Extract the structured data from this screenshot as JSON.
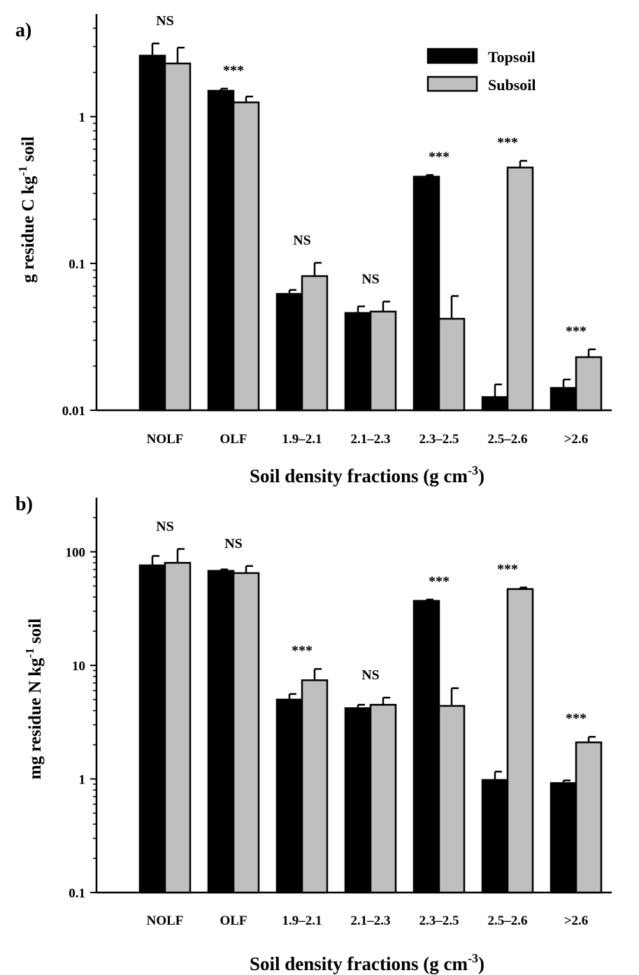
{
  "chart_data": [
    {
      "type": "bar",
      "panel_label": "a)",
      "categories": [
        "NOLF",
        "OLF",
        "1.9–2.1",
        "2.1–2.3",
        "2.3–2.5",
        "2.5–2.6",
        ">2.6"
      ],
      "series": [
        {
          "name": "Topsoil",
          "color": "#000000",
          "values": [
            2.6,
            1.5,
            0.062,
            0.046,
            0.39,
            0.0123,
            0.0142
          ],
          "errors": [
            0.55,
            0.05,
            0.004,
            0.005,
            0.01,
            0.0027,
            0.002
          ]
        },
        {
          "name": "Subsoil",
          "color": "#bfbfbf",
          "values": [
            2.3,
            1.25,
            0.082,
            0.047,
            0.042,
            0.45,
            0.023
          ],
          "errors": [
            0.65,
            0.12,
            0.019,
            0.008,
            0.018,
            0.05,
            0.003
          ]
        }
      ],
      "significance": [
        "NS",
        "***",
        "NS",
        "NS",
        "***",
        "***",
        "***"
      ],
      "ylabel": {
        "pre": "g residue C kg",
        "sup": "-1",
        "post": " soil"
      },
      "xlabel": {
        "pre": "Soil density fractions (g cm",
        "sup": "-3",
        "post": ")"
      },
      "yscale": "log",
      "ylim": [
        0.01,
        5
      ],
      "yticks": [
        {
          "value": 0.01,
          "label": "0.01"
        },
        {
          "value": 0.1,
          "label": "0.1"
        },
        {
          "value": 1,
          "label": "1"
        }
      ],
      "legend_position": "top-right"
    },
    {
      "type": "bar",
      "panel_label": "b)",
      "categories": [
        "NOLF",
        "OLF",
        "1.9–2.1",
        "2.1–2.3",
        "2.3–2.5",
        "2.5–2.6",
        ">2.6"
      ],
      "series": [
        {
          "name": "Topsoil",
          "color": "#000000",
          "values": [
            76,
            68,
            5.0,
            4.2,
            37,
            0.98,
            0.92
          ],
          "errors": [
            16,
            2,
            0.6,
            0.3,
            1,
            0.18,
            0.05
          ]
        },
        {
          "name": "Subsoil",
          "color": "#bfbfbf",
          "values": [
            80,
            65,
            7.4,
            4.5,
            4.4,
            47,
            2.1
          ],
          "errors": [
            26,
            10,
            1.9,
            0.7,
            1.9,
            1.5,
            0.25
          ]
        }
      ],
      "significance": [
        "NS",
        "NS",
        "***",
        "NS",
        "***",
        "***",
        "***"
      ],
      "ylabel": {
        "pre": "mg residue N kg",
        "sup": "-1",
        "post": " soil"
      },
      "xlabel": {
        "pre": "Soil density fractions (g cm",
        "sup": "-3",
        "post": ")"
      },
      "yscale": "log",
      "ylim": [
        0.1,
        300
      ],
      "yticks": [
        {
          "value": 0.1,
          "label": "0.1"
        },
        {
          "value": 1,
          "label": "1"
        },
        {
          "value": 10,
          "label": "10"
        },
        {
          "value": 100,
          "label": "100"
        }
      ]
    }
  ]
}
